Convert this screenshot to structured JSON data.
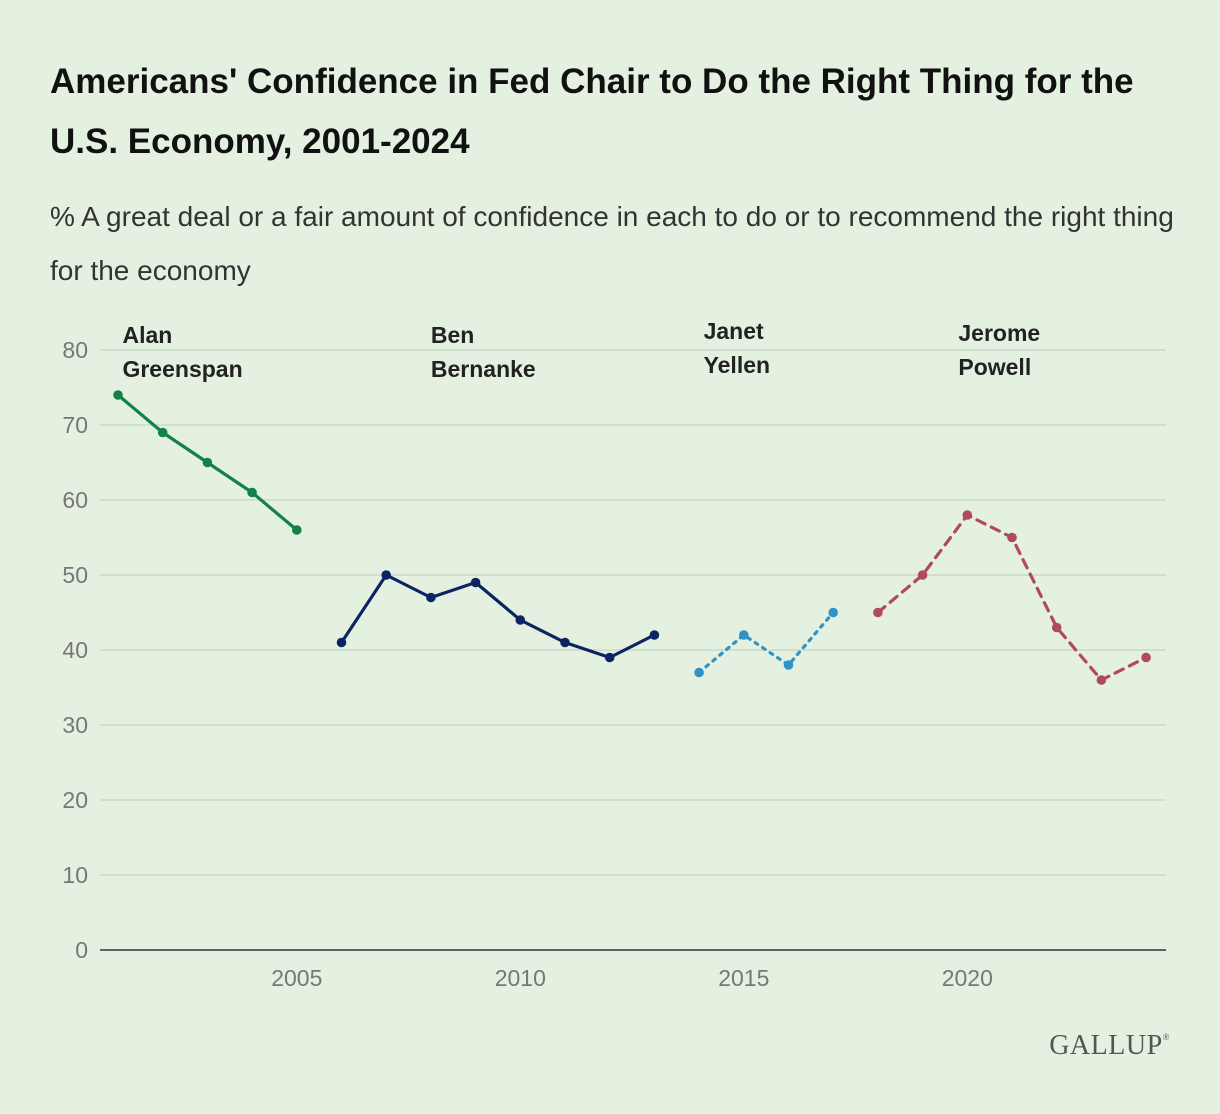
{
  "header": {
    "title": "Americans' Confidence in Fed Chair to Do the Right Thing for the U.S. Economy, 2001-2024",
    "subtitle": "% A great deal or a fair amount of confidence in each to do or to recommend the right thing for the economy"
  },
  "branding": {
    "logo_text": "GALLUP",
    "logo_mark": "®"
  },
  "chart_data": {
    "type": "line",
    "title": "Americans' Confidence in Fed Chair to Do the Right Thing for the U.S. Economy, 2001-2024",
    "subtitle": "% A great deal or a fair amount of confidence in each to do or to recommend the right thing for the economy",
    "xlabel": "",
    "ylabel": "",
    "xlim": [
      2001,
      2024
    ],
    "ylim": [
      0,
      80
    ],
    "x_ticks": [
      2005,
      2010,
      2015,
      2020
    ],
    "y_ticks": [
      0,
      10,
      20,
      30,
      40,
      50,
      60,
      70,
      80
    ],
    "grid": "horizontal",
    "series": [
      {
        "label_lines": [
          "Alan",
          "Greenspan"
        ],
        "color": "#128247",
        "line_style": "solid",
        "points": [
          [
            2001,
            74
          ],
          [
            2002,
            69
          ],
          [
            2003,
            65
          ],
          [
            2004,
            61
          ],
          [
            2005,
            56
          ]
        ]
      },
      {
        "label_lines": [
          "Ben",
          "Bernanke"
        ],
        "color": "#0c2461",
        "line_style": "solid",
        "points": [
          [
            2006,
            41
          ],
          [
            2007,
            50
          ],
          [
            2008,
            47
          ],
          [
            2009,
            49
          ],
          [
            2010,
            44
          ],
          [
            2011,
            41
          ],
          [
            2012,
            39
          ],
          [
            2013,
            42
          ]
        ]
      },
      {
        "label_lines": [
          "Janet",
          "Yellen"
        ],
        "color": "#2e93c8",
        "line_style": "dotted",
        "points": [
          [
            2014,
            37
          ],
          [
            2015,
            42
          ],
          [
            2016,
            38
          ],
          [
            2017,
            45
          ]
        ]
      },
      {
        "label_lines": [
          "Jerome",
          "Powell"
        ],
        "color": "#b04a5a",
        "line_style": "dashed",
        "points": [
          [
            2018,
            45
          ],
          [
            2019,
            50
          ],
          [
            2020,
            58
          ],
          [
            2021,
            55
          ],
          [
            2022,
            43
          ],
          [
            2023,
            36
          ],
          [
            2024,
            39
          ]
        ]
      }
    ]
  }
}
